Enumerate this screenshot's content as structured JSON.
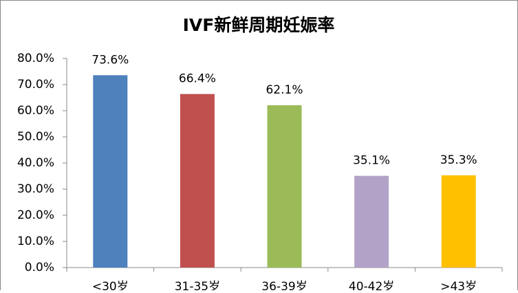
{
  "chart_data": {
    "type": "bar",
    "title": "IVF新鲜周期妊娠率",
    "categories": [
      "<30岁",
      "31-35岁",
      "36-39岁",
      "40-42岁",
      ">43岁"
    ],
    "values": [
      73.6,
      66.4,
      62.1,
      35.1,
      35.3
    ],
    "value_labels": [
      "73.6%",
      "66.4%",
      "62.1%",
      "35.1%",
      "35.3%"
    ],
    "colors": [
      "#4f81bd",
      "#c0504d",
      "#9bbb59",
      "#b3a2c7",
      "#ffc000"
    ],
    "ylim": [
      0,
      80
    ],
    "yticks": [
      {
        "value": 0,
        "label": "0.0%"
      },
      {
        "value": 10,
        "label": "10.0%"
      },
      {
        "value": 20,
        "label": "20.0%"
      },
      {
        "value": 30,
        "label": "30.0%"
      },
      {
        "value": 40,
        "label": "40.0%"
      },
      {
        "value": 50,
        "label": "50.0%"
      },
      {
        "value": 60,
        "label": "60.0%"
      },
      {
        "value": 70,
        "label": "70.0%"
      },
      {
        "value": 80,
        "label": "80.0%"
      }
    ],
    "grid": false
  }
}
